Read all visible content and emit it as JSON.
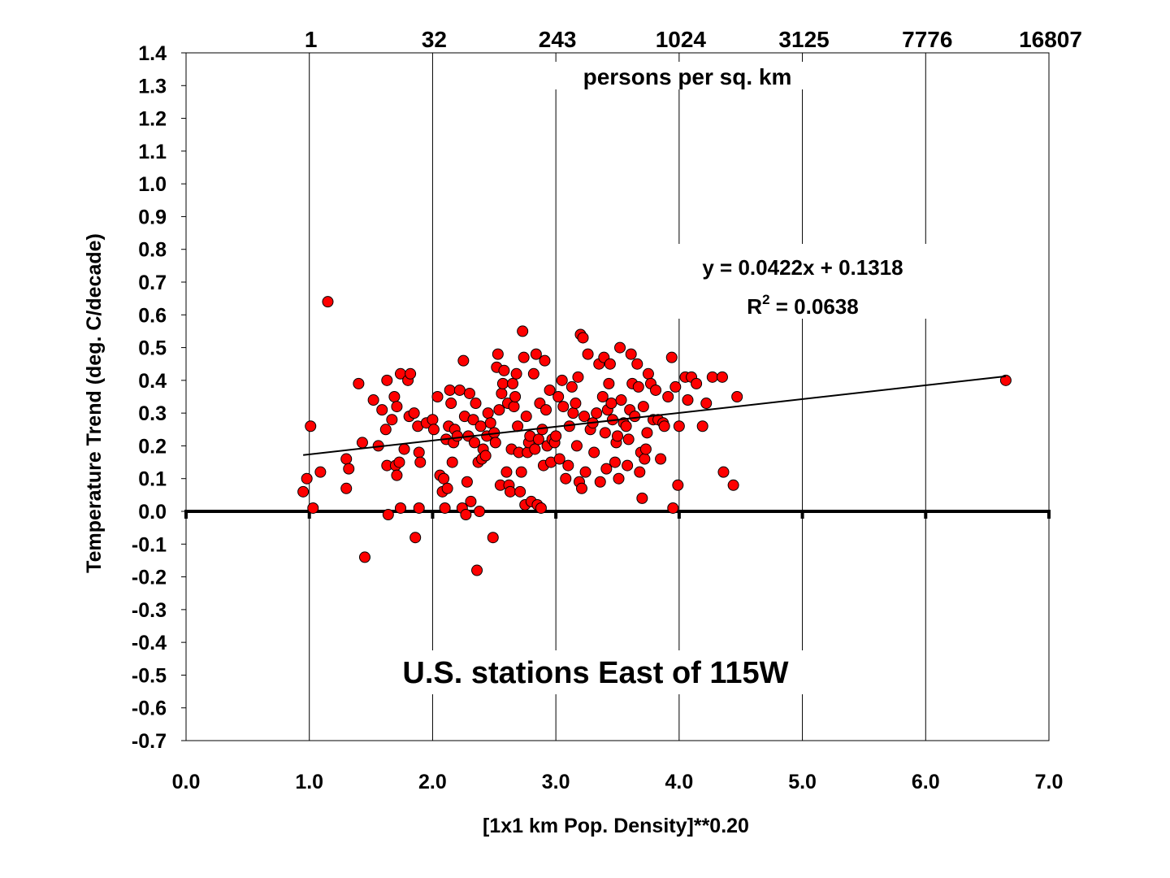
{
  "chart_data": {
    "type": "scatter",
    "title": "U.S. stations East of 115W",
    "xlabel": "[1x1 km Pop. Density]**0.20",
    "ylabel": "Temperature Trend (deg. C/decade)",
    "top_axis_label": "persons per sq. km",
    "top_axis_ticks": [
      {
        "x": 1.0,
        "label": "1"
      },
      {
        "x": 2.0,
        "label": "32"
      },
      {
        "x": 3.0,
        "label": "243"
      },
      {
        "x": 4.0,
        "label": "1024"
      },
      {
        "x": 5.0,
        "label": "3125"
      },
      {
        "x": 6.0,
        "label": "7776"
      },
      {
        "x": 7.0,
        "label": "16807"
      }
    ],
    "xlim": [
      0.0,
      7.0
    ],
    "ylim": [
      -0.7,
      1.4
    ],
    "x_ticks": [
      "0.0",
      "1.0",
      "2.0",
      "3.0",
      "4.0",
      "5.0",
      "6.0",
      "7.0"
    ],
    "y_ticks": [
      "1.4",
      "1.3",
      "1.2",
      "1.1",
      "1.0",
      "0.9",
      "0.8",
      "0.7",
      "0.6",
      "0.5",
      "0.4",
      "0.3",
      "0.2",
      "0.1",
      "0.0",
      "-0.1",
      "-0.2",
      "-0.3",
      "-0.4",
      "-0.5",
      "-0.6",
      "-0.7"
    ],
    "grid": "vertical",
    "marker_color": "#ff0000",
    "trendline": {
      "slope": 0.0422,
      "intercept": 0.1318,
      "x_range": [
        0.95,
        6.65
      ]
    },
    "equation": "y = 0.0422x + 0.1318",
    "r2_prefix": "R",
    "r2_exp": "2",
    "r2_value": " = 0.0638",
    "points": [
      [
        0.95,
        0.06
      ],
      [
        0.98,
        0.1
      ],
      [
        1.01,
        0.26
      ],
      [
        1.03,
        0.01
      ],
      [
        1.09,
        0.12
      ],
      [
        1.15,
        0.64
      ],
      [
        1.3,
        0.07
      ],
      [
        1.3,
        0.16
      ],
      [
        1.32,
        0.13
      ],
      [
        1.4,
        0.39
      ],
      [
        1.43,
        0.21
      ],
      [
        1.45,
        -0.14
      ],
      [
        1.52,
        0.34
      ],
      [
        1.56,
        0.2
      ],
      [
        1.59,
        0.31
      ],
      [
        1.62,
        0.25
      ],
      [
        1.63,
        0.14
      ],
      [
        1.63,
        0.4
      ],
      [
        1.64,
        -0.01
      ],
      [
        1.67,
        0.28
      ],
      [
        1.69,
        0.35
      ],
      [
        1.7,
        0.14
      ],
      [
        1.71,
        0.11
      ],
      [
        1.71,
        0.32
      ],
      [
        1.73,
        0.15
      ],
      [
        1.74,
        0.01
      ],
      [
        1.74,
        0.42
      ],
      [
        1.77,
        0.19
      ],
      [
        1.8,
        0.4
      ],
      [
        1.81,
        0.29
      ],
      [
        1.82,
        0.42
      ],
      [
        1.85,
        0.3
      ],
      [
        1.86,
        -0.08
      ],
      [
        1.88,
        0.26
      ],
      [
        1.89,
        0.01
      ],
      [
        1.89,
        0.18
      ],
      [
        1.9,
        0.15
      ],
      [
        1.95,
        0.27
      ],
      [
        2.0,
        0.28
      ],
      [
        2.01,
        0.25
      ],
      [
        2.04,
        0.35
      ],
      [
        2.06,
        0.11
      ],
      [
        2.08,
        0.06
      ],
      [
        2.09,
        0.1
      ],
      [
        2.1,
        0.01
      ],
      [
        2.11,
        0.22
      ],
      [
        2.12,
        0.07
      ],
      [
        2.13,
        0.26
      ],
      [
        2.14,
        0.37
      ],
      [
        2.15,
        0.33
      ],
      [
        2.16,
        0.15
      ],
      [
        2.17,
        0.21
      ],
      [
        2.18,
        0.25
      ],
      [
        2.2,
        0.23
      ],
      [
        2.22,
        0.37
      ],
      [
        2.24,
        0.01
      ],
      [
        2.25,
        0.46
      ],
      [
        2.26,
        0.29
      ],
      [
        2.27,
        -0.01
      ],
      [
        2.28,
        0.09
      ],
      [
        2.29,
        0.23
      ],
      [
        2.3,
        0.36
      ],
      [
        2.31,
        0.03
      ],
      [
        2.33,
        0.28
      ],
      [
        2.34,
        0.21
      ],
      [
        2.35,
        0.33
      ],
      [
        2.36,
        -0.18
      ],
      [
        2.37,
        0.15
      ],
      [
        2.38,
        0.0
      ],
      [
        2.39,
        0.26
      ],
      [
        2.4,
        0.16
      ],
      [
        2.41,
        0.19
      ],
      [
        2.43,
        0.17
      ],
      [
        2.44,
        0.23
      ],
      [
        2.45,
        0.3
      ],
      [
        2.47,
        0.27
      ],
      [
        2.49,
        -0.08
      ],
      [
        2.5,
        0.24
      ],
      [
        2.51,
        0.21
      ],
      [
        2.52,
        0.44
      ],
      [
        2.53,
        0.48
      ],
      [
        2.54,
        0.31
      ],
      [
        2.55,
        0.08
      ],
      [
        2.56,
        0.36
      ],
      [
        2.57,
        0.39
      ],
      [
        2.58,
        0.43
      ],
      [
        2.6,
        0.12
      ],
      [
        2.61,
        0.33
      ],
      [
        2.62,
        0.08
      ],
      [
        2.63,
        0.06
      ],
      [
        2.64,
        0.19
      ],
      [
        2.65,
        0.39
      ],
      [
        2.66,
        0.32
      ],
      [
        2.67,
        0.35
      ],
      [
        2.68,
        0.42
      ],
      [
        2.69,
        0.26
      ],
      [
        2.7,
        0.18
      ],
      [
        2.71,
        0.06
      ],
      [
        2.72,
        0.12
      ],
      [
        2.73,
        0.55
      ],
      [
        2.74,
        0.47
      ],
      [
        2.75,
        0.02
      ],
      [
        2.76,
        0.29
      ],
      [
        2.77,
        0.18
      ],
      [
        2.78,
        0.21
      ],
      [
        2.79,
        0.23
      ],
      [
        2.8,
        0.03
      ],
      [
        2.82,
        0.42
      ],
      [
        2.83,
        0.19
      ],
      [
        2.84,
        0.48
      ],
      [
        2.85,
        0.02
      ],
      [
        2.86,
        0.22
      ],
      [
        2.87,
        0.33
      ],
      [
        2.88,
        0.01
      ],
      [
        2.89,
        0.25
      ],
      [
        2.9,
        0.14
      ],
      [
        2.91,
        0.46
      ],
      [
        2.92,
        0.31
      ],
      [
        2.93,
        0.2
      ],
      [
        2.95,
        0.37
      ],
      [
        2.96,
        0.15
      ],
      [
        2.97,
        0.22
      ],
      [
        2.99,
        0.21
      ],
      [
        3.0,
        0.23
      ],
      [
        3.02,
        0.35
      ],
      [
        3.03,
        0.16
      ],
      [
        3.05,
        0.4
      ],
      [
        3.06,
        0.32
      ],
      [
        3.08,
        0.1
      ],
      [
        3.1,
        0.14
      ],
      [
        3.11,
        0.26
      ],
      [
        3.13,
        0.38
      ],
      [
        3.14,
        0.3
      ],
      [
        3.16,
        0.33
      ],
      [
        3.17,
        0.2
      ],
      [
        3.18,
        0.41
      ],
      [
        3.19,
        0.09
      ],
      [
        3.2,
        0.54
      ],
      [
        3.21,
        0.07
      ],
      [
        3.22,
        0.53
      ],
      [
        3.23,
        0.29
      ],
      [
        3.24,
        0.12
      ],
      [
        3.26,
        0.48
      ],
      [
        3.28,
        0.25
      ],
      [
        3.3,
        0.27
      ],
      [
        3.31,
        0.18
      ],
      [
        3.33,
        0.3
      ],
      [
        3.35,
        0.45
      ],
      [
        3.36,
        0.09
      ],
      [
        3.38,
        0.35
      ],
      [
        3.39,
        0.47
      ],
      [
        3.4,
        0.24
      ],
      [
        3.41,
        0.13
      ],
      [
        3.42,
        0.31
      ],
      [
        3.43,
        0.39
      ],
      [
        3.44,
        0.45
      ],
      [
        3.45,
        0.33
      ],
      [
        3.46,
        0.28
      ],
      [
        3.48,
        0.15
      ],
      [
        3.49,
        0.21
      ],
      [
        3.5,
        0.23
      ],
      [
        3.51,
        0.1
      ],
      [
        3.52,
        0.5
      ],
      [
        3.53,
        0.34
      ],
      [
        3.55,
        0.27
      ],
      [
        3.57,
        0.26
      ],
      [
        3.58,
        0.14
      ],
      [
        3.59,
        0.22
      ],
      [
        3.6,
        0.31
      ],
      [
        3.61,
        0.48
      ],
      [
        3.62,
        0.39
      ],
      [
        3.64,
        0.29
      ],
      [
        3.66,
        0.45
      ],
      [
        3.67,
        0.38
      ],
      [
        3.68,
        0.12
      ],
      [
        3.69,
        0.18
      ],
      [
        3.7,
        0.04
      ],
      [
        3.71,
        0.32
      ],
      [
        3.72,
        0.16
      ],
      [
        3.73,
        0.19
      ],
      [
        3.74,
        0.24
      ],
      [
        3.75,
        0.42
      ],
      [
        3.77,
        0.39
      ],
      [
        3.79,
        0.28
      ],
      [
        3.81,
        0.37
      ],
      [
        3.83,
        0.28
      ],
      [
        3.85,
        0.16
      ],
      [
        3.87,
        0.27
      ],
      [
        3.88,
        0.26
      ],
      [
        3.91,
        0.35
      ],
      [
        3.94,
        0.47
      ],
      [
        3.95,
        0.01
      ],
      [
        3.97,
        0.38
      ],
      [
        3.99,
        0.08
      ],
      [
        4.0,
        0.26
      ],
      [
        4.05,
        0.41
      ],
      [
        4.07,
        0.34
      ],
      [
        4.1,
        0.41
      ],
      [
        4.14,
        0.39
      ],
      [
        4.19,
        0.26
      ],
      [
        4.22,
        0.33
      ],
      [
        4.27,
        0.41
      ],
      [
        4.35,
        0.41
      ],
      [
        4.36,
        0.12
      ],
      [
        4.44,
        0.08
      ],
      [
        4.47,
        0.35
      ],
      [
        6.65,
        0.4
      ]
    ]
  }
}
